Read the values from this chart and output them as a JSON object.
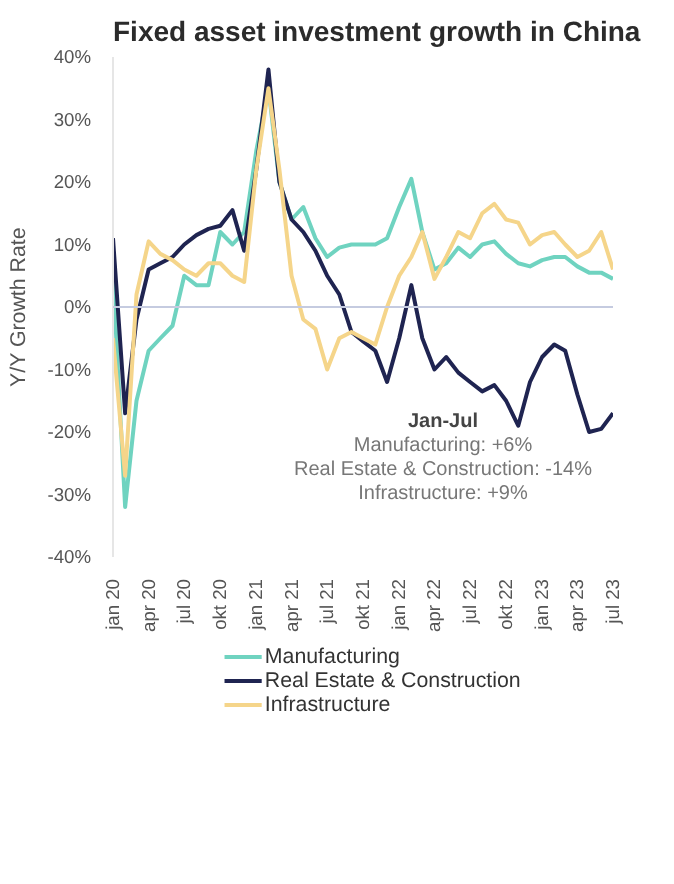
{
  "chart_data": {
    "type": "line",
    "title": "Fixed asset investment growth in China",
    "ylabel": "Y/Y Growth Rate",
    "x": [
      "2020-01",
      "2020-02",
      "2020-03",
      "2020-04",
      "2020-05",
      "2020-06",
      "2020-07",
      "2020-08",
      "2020-09",
      "2020-10",
      "2020-11",
      "2020-12",
      "2021-01",
      "2021-02",
      "2021-03",
      "2021-04",
      "2021-05",
      "2021-06",
      "2021-07",
      "2021-08",
      "2021-09",
      "2021-10",
      "2021-11",
      "2021-12",
      "2022-01",
      "2022-02",
      "2022-03",
      "2022-04",
      "2022-05",
      "2022-06",
      "2022-07",
      "2022-08",
      "2022-09",
      "2022-10",
      "2022-11",
      "2022-12",
      "2023-01",
      "2023-02",
      "2023-03",
      "2023-04",
      "2023-05",
      "2023-06",
      "2023-07"
    ],
    "series": [
      {
        "name": "Manufacturing",
        "color": "#6fd3c0",
        "values": [
          5,
          -32,
          -15,
          -7,
          -5,
          -3,
          5,
          3.5,
          3.5,
          12,
          10,
          12,
          25,
          35,
          20,
          14,
          16,
          11,
          8,
          9.5,
          10,
          10,
          10,
          11,
          16,
          20.5,
          12,
          6,
          7,
          9.5,
          8,
          10,
          10.5,
          8.5,
          7,
          6.5,
          7.5,
          8,
          8,
          6.5,
          5.5,
          5.5,
          4.5
        ]
      },
      {
        "name": "Real Estate & Construction",
        "color": "#1f2451",
        "values": [
          11,
          -17,
          -2,
          6,
          7,
          8,
          10,
          11.5,
          12.5,
          13,
          15.5,
          9,
          22,
          38,
          20,
          14,
          12,
          9,
          5,
          2,
          -4,
          -5.5,
          -7,
          -12,
          -5,
          3.5,
          -5,
          -10,
          -8,
          -10.5,
          -12,
          -13.5,
          -12.5,
          -15,
          -19,
          -12,
          -8,
          -6,
          -7,
          -14,
          -20,
          -19.5,
          -17
        ]
      },
      {
        "name": "Infrastructure",
        "color": "#f5d58a",
        "values": [
          -5,
          -27,
          2,
          10.5,
          8.5,
          7.5,
          6,
          5,
          7,
          7,
          5,
          4,
          22,
          35,
          22,
          5,
          -2,
          -3.5,
          -10,
          -5,
          -4,
          -5,
          -6,
          0,
          5,
          8,
          12,
          4.5,
          8,
          12,
          11,
          15,
          16.5,
          14,
          13.5,
          10,
          11.5,
          12,
          10,
          8,
          9,
          12,
          6
        ]
      }
    ],
    "xlim": [
      "2020-01",
      "2023-07"
    ],
    "xticks": [
      {
        "value": "2020-01",
        "label": "jan 20"
      },
      {
        "value": "2020-04",
        "label": "apr 20"
      },
      {
        "value": "2020-07",
        "label": "jul 20"
      },
      {
        "value": "2020-10",
        "label": "okt 20"
      },
      {
        "value": "2021-01",
        "label": "jan 21"
      },
      {
        "value": "2021-04",
        "label": "apr 21"
      },
      {
        "value": "2021-07",
        "label": "jul 21"
      },
      {
        "value": "2021-10",
        "label": "okt 21"
      },
      {
        "value": "2022-01",
        "label": "jan 22"
      },
      {
        "value": "2022-04",
        "label": "apr 22"
      },
      {
        "value": "2022-07",
        "label": "jul 22"
      },
      {
        "value": "2022-10",
        "label": "okt 22"
      },
      {
        "value": "2023-01",
        "label": "jan 23"
      },
      {
        "value": "2023-04",
        "label": "apr 23"
      },
      {
        "value": "2023-07",
        "label": "jul 23"
      }
    ],
    "ylim": [
      -40,
      40
    ],
    "yticks": [
      {
        "value": -40,
        "label": "-40%"
      },
      {
        "value": -30,
        "label": "-30%"
      },
      {
        "value": -20,
        "label": "-20%"
      },
      {
        "value": -10,
        "label": "-10%"
      },
      {
        "value": 0,
        "label": "0%"
      },
      {
        "value": 10,
        "label": "10%"
      },
      {
        "value": 20,
        "label": "20%"
      },
      {
        "value": 30,
        "label": "30%"
      },
      {
        "value": 40,
        "label": "40%"
      }
    ],
    "ref_lines": [
      {
        "axis": "y",
        "value": 0,
        "color": "#c5cbe0"
      }
    ],
    "annotations": [
      "Jan-Jul",
      "Manufacturing: +6%",
      "Real Estate & Construction: -14%",
      "Infrastructure: +9%"
    ],
    "grid": false,
    "legend": "bottom",
    "marker": "none",
    "line_style": "solid"
  }
}
